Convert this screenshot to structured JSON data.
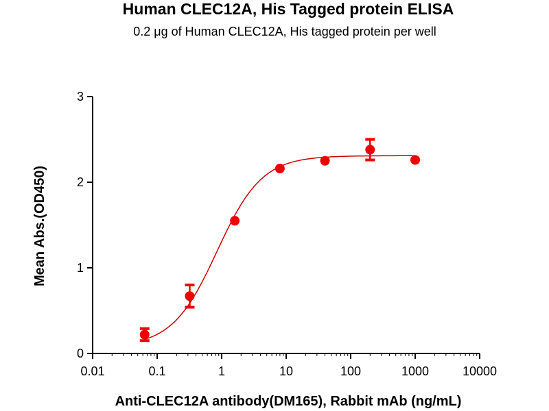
{
  "chart_data": {
    "type": "scatter",
    "title": "Human CLEC12A, His Tagged protein ELISA",
    "subtitle": "0.2 μg of Human CLEC12A, His tagged protein per well",
    "xlabel": "Anti-CLEC12A antibody(DM165), Rabbit mAb (ng/mL)",
    "ylabel": "Mean Abs.(OD450)",
    "xscale": "log",
    "xlim": [
      0.01,
      10000
    ],
    "ylim": [
      0,
      3
    ],
    "xticks": [
      "0.01",
      "0.1",
      "1",
      "10",
      "100",
      "1000",
      "10000"
    ],
    "xtick_values": [
      0.01,
      0.1,
      1,
      10,
      100,
      1000,
      10000
    ],
    "yticks": [
      "0",
      "1",
      "2",
      "3"
    ],
    "ytick_values": [
      0,
      1,
      2,
      3
    ],
    "grid": false,
    "color": "#ee0000",
    "series": [
      {
        "name": "Human CLEC12A",
        "x": [
          0.064,
          0.32,
          1.6,
          8,
          40,
          200,
          1000
        ],
        "y": [
          0.22,
          0.67,
          1.55,
          2.16,
          2.25,
          2.38,
          2.26
        ],
        "error": [
          0.07,
          0.13,
          0.02,
          0.02,
          0.02,
          0.12,
          0.02
        ]
      }
    ],
    "fit": {
      "model": "4PL",
      "bottom": 0.08,
      "top": 2.31,
      "ec50": 0.85,
      "hill": 1.25
    }
  }
}
